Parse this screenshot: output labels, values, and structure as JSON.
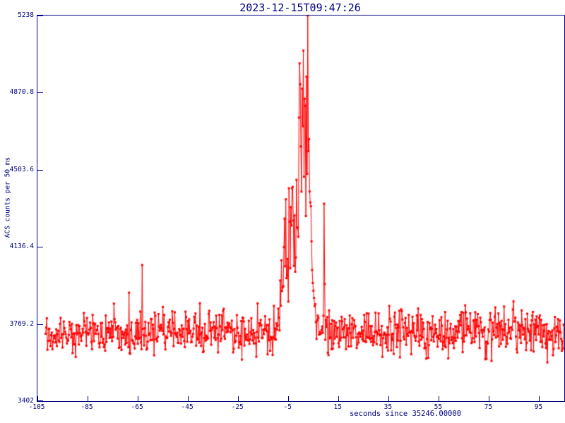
{
  "title": "2023-12-15T09:47:26",
  "colors": {
    "axis": "#000080",
    "series": "#ff0000",
    "background": "#ffffff"
  },
  "chart_data": {
    "type": "line",
    "title": "2023-12-15T09:47:26",
    "xlabel": "seconds since 35246.00000",
    "ylabel": "ACS counts per 50 ms",
    "grid": false,
    "legend": null,
    "marker": "square",
    "marker_size": 3,
    "series_color": "#ff0000",
    "x_axis": {
      "min": -105,
      "max": 105,
      "ticks": [
        {
          "value": -105,
          "label": "-105"
        },
        {
          "value": -85,
          "label": "-85"
        },
        {
          "value": -65,
          "label": "-65"
        },
        {
          "value": -45,
          "label": "-45"
        },
        {
          "value": -25,
          "label": "-25"
        },
        {
          "value": -5,
          "label": "-5"
        },
        {
          "value": 15,
          "label": "15"
        },
        {
          "value": 35,
          "label": "35"
        },
        {
          "value": 55,
          "label": "55"
        },
        {
          "value": 75,
          "label": "75"
        },
        {
          "value": 95,
          "label": "95"
        }
      ]
    },
    "y_axis": {
      "min": 3402,
      "max": 5238,
      "ticks": [
        {
          "value": 3402,
          "label": "3402"
        },
        {
          "value": 3769.2,
          "label": "3769.2"
        },
        {
          "value": 4136.4,
          "label": "4136.4"
        },
        {
          "value": 4503.6,
          "label": "4503.6"
        },
        {
          "value": 4870.8,
          "label": "4870.8"
        },
        {
          "value": 5238,
          "label": "5238"
        }
      ]
    },
    "signal_model": {
      "description": "Noisy count-rate baseline ~3730 cts with a multi-component burst around t=0 peaking ~5150, lone outlier at t=-63.25 (~4050) and secondary spike at t=+9.25 (~4340).",
      "seed": 20231215,
      "t_start": -101.75,
      "t_end": 104.75,
      "dt": 0.25,
      "baseline_mean": 3728,
      "baseline_sigma": 52,
      "bursts": [
        {
          "center": -4.6,
          "amplitude": 480,
          "sigma": 2.4
        },
        {
          "center": -0.5,
          "amplitude": 350,
          "sigma": 1.0
        },
        {
          "center": 1.7,
          "amplitude": 1020,
          "sigma": 1.9
        }
      ],
      "burst_noise_scale": 0.22,
      "outliers": [
        {
          "t": -63.25,
          "value": 4050
        },
        {
          "t": 9.25,
          "value": 4342
        },
        {
          "t": 9.5,
          "value": 3960
        }
      ],
      "clip_min": 3402,
      "clip_max": 5238
    }
  }
}
